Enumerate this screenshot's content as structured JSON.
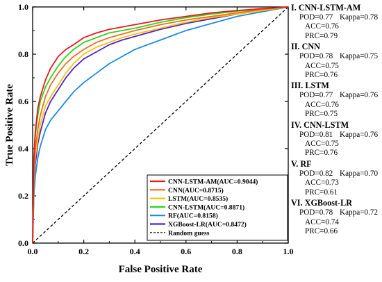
{
  "chart_data": {
    "type": "line",
    "xlabel": "False Positive Rate",
    "ylabel": "True Positive Rate",
    "xlim": [
      0,
      1
    ],
    "ylim": [
      0,
      1
    ],
    "xticks": [
      "0.0",
      "0.2",
      "0.4",
      "0.6",
      "0.8",
      "1.0"
    ],
    "yticks": [
      "0.0",
      "0.2",
      "0.4",
      "0.6",
      "0.8",
      "1.0"
    ],
    "grid": false,
    "legend_position": "bottom-right",
    "series": [
      {
        "name": "CNN-LSTM-AM(AUC=0.9044)",
        "color": "#e8191c",
        "x": [
          0,
          0.005,
          0.01,
          0.02,
          0.03,
          0.05,
          0.07,
          0.1,
          0.13,
          0.16,
          0.2,
          0.25,
          0.3,
          0.35,
          0.4,
          0.5,
          0.6,
          0.7,
          0.8,
          0.9,
          1.0
        ],
        "y": [
          0,
          0.36,
          0.47,
          0.57,
          0.62,
          0.69,
          0.74,
          0.79,
          0.82,
          0.84,
          0.87,
          0.89,
          0.905,
          0.915,
          0.925,
          0.945,
          0.96,
          0.975,
          0.985,
          0.993,
          1.0
        ]
      },
      {
        "name": "CNN(AUC=0.8715)",
        "color": "#f26b21",
        "x": [
          0,
          0.005,
          0.01,
          0.02,
          0.03,
          0.05,
          0.07,
          0.1,
          0.13,
          0.16,
          0.2,
          0.25,
          0.3,
          0.35,
          0.4,
          0.5,
          0.6,
          0.7,
          0.8,
          0.9,
          1.0
        ],
        "y": [
          0,
          0.3,
          0.4,
          0.48,
          0.54,
          0.62,
          0.67,
          0.72,
          0.76,
          0.79,
          0.82,
          0.85,
          0.87,
          0.885,
          0.9,
          0.925,
          0.945,
          0.96,
          0.975,
          0.99,
          1.0
        ]
      },
      {
        "name": "LSTM(AUC=0.8535)",
        "color": "#f5c400",
        "x": [
          0,
          0.005,
          0.01,
          0.02,
          0.03,
          0.05,
          0.07,
          0.1,
          0.13,
          0.16,
          0.2,
          0.25,
          0.3,
          0.35,
          0.4,
          0.5,
          0.6,
          0.7,
          0.8,
          0.9,
          1.0
        ],
        "y": [
          0,
          0.26,
          0.36,
          0.44,
          0.5,
          0.58,
          0.62,
          0.67,
          0.72,
          0.76,
          0.8,
          0.83,
          0.85,
          0.87,
          0.885,
          0.91,
          0.935,
          0.955,
          0.97,
          0.985,
          1.0
        ]
      },
      {
        "name": "CNN-LSTM(AUC=0.8871)",
        "color": "#2fd31c",
        "x": [
          0,
          0.005,
          0.01,
          0.02,
          0.03,
          0.05,
          0.07,
          0.1,
          0.13,
          0.16,
          0.2,
          0.25,
          0.3,
          0.35,
          0.4,
          0.5,
          0.6,
          0.7,
          0.8,
          0.9,
          1.0
        ],
        "y": [
          0,
          0.34,
          0.45,
          0.54,
          0.6,
          0.66,
          0.7,
          0.75,
          0.79,
          0.82,
          0.85,
          0.87,
          0.89,
          0.9,
          0.91,
          0.935,
          0.955,
          0.97,
          0.982,
          0.992,
          1.0
        ]
      },
      {
        "name": "RF(AUC=0.8158)",
        "color": "#1c8ae0",
        "x": [
          0,
          0.005,
          0.01,
          0.02,
          0.03,
          0.05,
          0.07,
          0.1,
          0.13,
          0.16,
          0.2,
          0.25,
          0.3,
          0.35,
          0.4,
          0.5,
          0.6,
          0.7,
          0.8,
          0.9,
          1.0
        ],
        "y": [
          0,
          0.2,
          0.28,
          0.36,
          0.41,
          0.48,
          0.52,
          0.56,
          0.6,
          0.64,
          0.68,
          0.72,
          0.76,
          0.79,
          0.82,
          0.86,
          0.9,
          0.93,
          0.96,
          0.98,
          1.0
        ]
      },
      {
        "name": "XGBoost-LR(AUC=0.8472)",
        "color": "#4e1fd8",
        "x": [
          0,
          0.005,
          0.01,
          0.02,
          0.03,
          0.05,
          0.07,
          0.1,
          0.13,
          0.16,
          0.2,
          0.25,
          0.3,
          0.35,
          0.4,
          0.5,
          0.6,
          0.7,
          0.8,
          0.9,
          1.0
        ],
        "y": [
          0,
          0.24,
          0.33,
          0.42,
          0.47,
          0.55,
          0.6,
          0.65,
          0.7,
          0.74,
          0.78,
          0.81,
          0.84,
          0.86,
          0.875,
          0.905,
          0.93,
          0.95,
          0.97,
          0.985,
          1.0
        ]
      }
    ],
    "reference": {
      "name": "Random guess",
      "color": "#000000",
      "style": "dashed",
      "x": [
        0,
        1
      ],
      "y": [
        0,
        1
      ]
    }
  },
  "metrics_panel": {
    "models": [
      {
        "title": "I. CNN-LSTM-AM",
        "pod": "POD=0.77",
        "kappa": "Kappa=0.78",
        "acc": "ACC=0.76",
        "prc": "PRC=0.79"
      },
      {
        "title": "II. CNN",
        "pod": "POD=0.78",
        "kappa": "Kappa=0.75",
        "acc": "ACC=0.75",
        "prc": "PRC=0.76"
      },
      {
        "title": "III. LSTM",
        "pod": "POD=0.77",
        "kappa": "Kappa=0.76",
        "acc": "ACC=0.76",
        "prc": "PRC=0.75"
      },
      {
        "title": "IV. CNN-LSTM",
        "pod": "POD=0.81",
        "kappa": "Kappa=0.76",
        "acc": "ACC=0.75",
        "prc": "PRC=0.76"
      },
      {
        "title": "V. RF",
        "pod": "POD=0.82",
        "kappa": "Kappa=0.70",
        "acc": "ACC=0.73",
        "prc": "PRC=0.61"
      },
      {
        "title": "VI. XGBoost-LR",
        "pod": "POD=0.78",
        "kappa": "Kappa=0.72",
        "acc": "ACC=0.74",
        "prc": "PRC=0.66"
      }
    ]
  }
}
